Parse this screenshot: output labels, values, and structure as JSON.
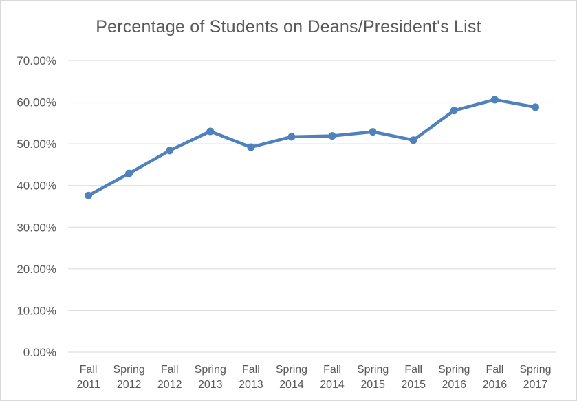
{
  "chart_data": {
    "type": "line",
    "title": "Percentage of Students on Deans/President's List",
    "xlabel": "",
    "ylabel": "",
    "categories": [
      [
        "Fall",
        "2011"
      ],
      [
        "Spring",
        "2012"
      ],
      [
        "Fall",
        "2012"
      ],
      [
        "Spring",
        "2013"
      ],
      [
        "Fall",
        "2013"
      ],
      [
        "Spring",
        "2014"
      ],
      [
        "Fall",
        "2014"
      ],
      [
        "Spring",
        "2015"
      ],
      [
        "Fall",
        "2015"
      ],
      [
        "Spring",
        "2016"
      ],
      [
        "Fall",
        "2016"
      ],
      [
        "Spring",
        "2017"
      ]
    ],
    "series": [
      {
        "values": [
          37.6,
          42.9,
          48.4,
          53.0,
          49.2,
          51.7,
          51.9,
          52.9,
          50.9,
          58.0,
          60.6,
          58.8
        ]
      }
    ],
    "ylim": [
      0,
      70
    ],
    "yticks": [
      "0.00%",
      "10.00%",
      "20.00%",
      "30.00%",
      "40.00%",
      "50.00%",
      "60.00%",
      "70.00%"
    ],
    "grid": true,
    "legend": "none",
    "colors": {
      "line": "#4f81bd",
      "grid": "#d9d9d9",
      "text": "#595959"
    }
  }
}
